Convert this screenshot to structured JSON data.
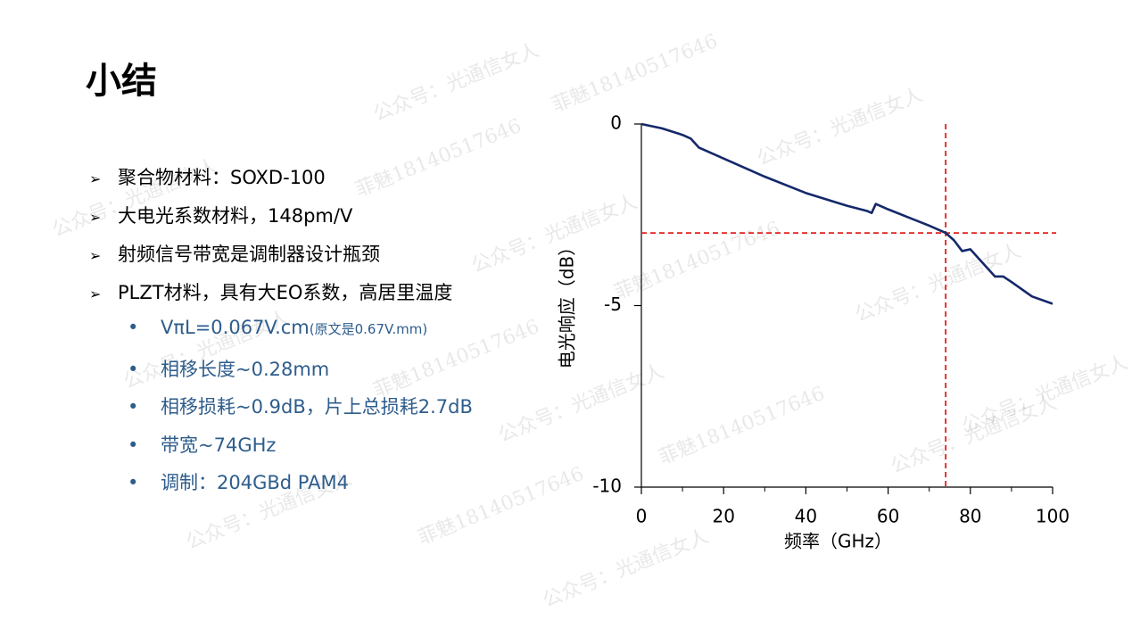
{
  "title": "小结",
  "bullets": [
    "聚合物材料：SOXD-100",
    "大电光系数材料，148pm/V",
    "射频信号带宽是调制器设计瓶颈",
    "PLZT材料，具有大EO系数，高居里温度"
  ],
  "sub_bullets": [
    {
      "text": "VπL=0.067V.cm",
      "note": "(原文是0.67V.mm)"
    },
    {
      "text": "相移长度~0.28mm"
    },
    {
      "text": "相移损耗~0.9dB，片上总损耗2.7dB"
    },
    {
      "text": "带宽~74GHz"
    },
    {
      "text": "调制：204GBd PAM4"
    }
  ],
  "watermarks": [
    "公众号：光通信女人",
    "菲魅18140517646"
  ],
  "chart_data": {
    "type": "line",
    "xlabel": "频率（GHz）",
    "ylabel": "电光响应（dB）",
    "x": [
      0,
      5,
      10,
      12,
      14,
      20,
      30,
      40,
      50,
      55,
      56,
      57,
      60,
      70,
      74,
      76,
      78,
      80,
      82,
      86,
      88,
      90,
      95,
      100
    ],
    "values": [
      0,
      -0.12,
      -0.3,
      -0.4,
      -0.65,
      -0.95,
      -1.45,
      -1.9,
      -2.25,
      -2.4,
      -2.45,
      -2.2,
      -2.35,
      -2.8,
      -3.0,
      -3.2,
      -3.5,
      -3.45,
      -3.7,
      -4.2,
      -4.2,
      -4.35,
      -4.75,
      -4.95
    ],
    "color": "#14286a",
    "xlim": [
      0,
      100
    ],
    "xticks": [
      0,
      20,
      40,
      60,
      80,
      100
    ],
    "xminorticks": [
      10,
      30,
      50,
      70,
      90
    ],
    "ylim": [
      -10,
      0
    ],
    "yticks": [
      0,
      -5,
      -10
    ],
    "ref_x": 74,
    "ref_y": -3,
    "ref_color": "#e0201c"
  }
}
